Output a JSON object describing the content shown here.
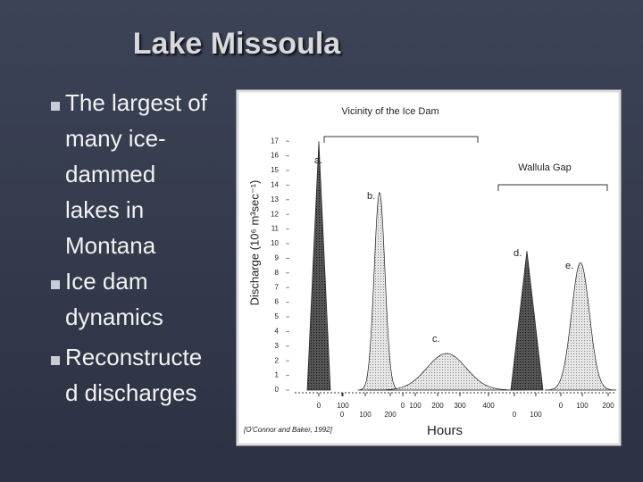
{
  "title": "Lake Missoula",
  "bullets": [
    {
      "lines": [
        "The largest of",
        "many ice-",
        "dammed",
        "lakes in",
        "Montana"
      ]
    },
    {
      "lines": [
        "Ice dam",
        "dynamics"
      ]
    },
    {
      "lines": [
        "Reconstructe",
        "d discharges"
      ]
    }
  ],
  "figure": {
    "y_label": "Discharge (10⁶ m³sec⁻¹)",
    "x_label": "Hours",
    "citation": "[O'Connor and Baker, 1992]",
    "groups": [
      "Vicinity of the Ice Dam",
      "Wallula Gap"
    ],
    "yticks": [
      0,
      1,
      2,
      3,
      4,
      5,
      6,
      7,
      8,
      9,
      10,
      11,
      12,
      13,
      14,
      15,
      16,
      17
    ],
    "hydrographs": [
      {
        "label": "a.",
        "peak": 17,
        "xticks": [
          0,
          100
        ]
      },
      {
        "label": "b.",
        "peak": 13.5,
        "xticks": [
          0,
          100,
          200
        ]
      },
      {
        "label": "c.",
        "peak": 2.5,
        "xticks": [
          0,
          100,
          200,
          300,
          400
        ]
      },
      {
        "label": "d.",
        "peak": 9.5,
        "xticks": [
          0,
          100
        ]
      },
      {
        "label": "e.",
        "peak": 8.7,
        "xticks": [
          0,
          100,
          200
        ]
      }
    ]
  }
}
